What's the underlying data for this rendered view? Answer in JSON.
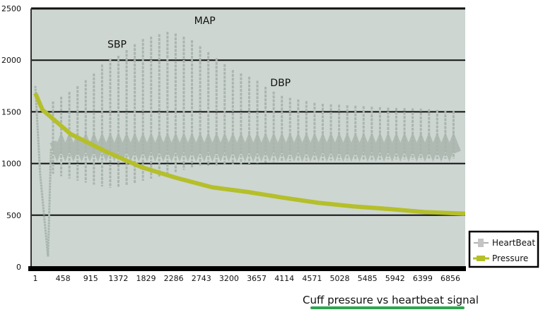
{
  "chart_data": {
    "type": "line",
    "title": "Cuff pressure vs heartbeat signal",
    "xlabel": "",
    "ylabel": "",
    "ylim": [
      0,
      2500
    ],
    "xlim": [
      1,
      7130
    ],
    "grid": true,
    "legend_position": "bottom-right",
    "y_ticks": [
      "0",
      "500",
      "1000",
      "1500",
      "2000",
      "2500"
    ],
    "x_ticks": [
      "1",
      "458",
      "915",
      "1372",
      "1829",
      "2286",
      "2743",
      "3200",
      "3657",
      "4114",
      "4571",
      "5028",
      "5485",
      "5942",
      "6399",
      "6856"
    ],
    "annotations": [
      {
        "text": "SBP",
        "x": 1350,
        "y": 2120
      },
      {
        "text": "MAP",
        "x": 2800,
        "y": 2350
      },
      {
        "text": "DBP",
        "x": 4050,
        "y": 1750
      }
    ],
    "series": [
      {
        "name": "HeartBeat",
        "color": "#a9b5ad",
        "baseline": 1150,
        "initial_transient": {
          "x": [
            1,
            80,
            210,
            260
          ],
          "y": [
            1750,
            900,
            100,
            1150
          ]
        },
        "envelope": {
          "x": [
            293,
            585,
            935,
            1169,
            1344,
            1753,
            2220,
            2571,
            2921,
            3272,
            3622,
            3856,
            4090,
            4674,
            5258,
            5842,
            6426,
            7010
          ],
          "upper": [
            1600,
            1700,
            1850,
            2000,
            2030,
            2200,
            2280,
            2200,
            2050,
            1900,
            1820,
            1720,
            1650,
            1580,
            1560,
            1540,
            1530,
            1500
          ],
          "lower": [
            900,
            850,
            800,
            770,
            760,
            830,
            900,
            960,
            980,
            990,
            1000,
            1010,
            1020,
            1030,
            1030,
            1040,
            1040,
            1050
          ]
        }
      },
      {
        "name": "Pressure",
        "color": "#b5bf2a",
        "x": [
          1,
          118,
          585,
          1170,
          1753,
          2337,
          2920,
          3505,
          4090,
          4674,
          5258,
          5842,
          6426,
          7100
        ],
        "y": [
          1680,
          1520,
          1285,
          1115,
          965,
          860,
          770,
          725,
          670,
          620,
          585,
          560,
          530,
          515
        ]
      }
    ]
  }
}
